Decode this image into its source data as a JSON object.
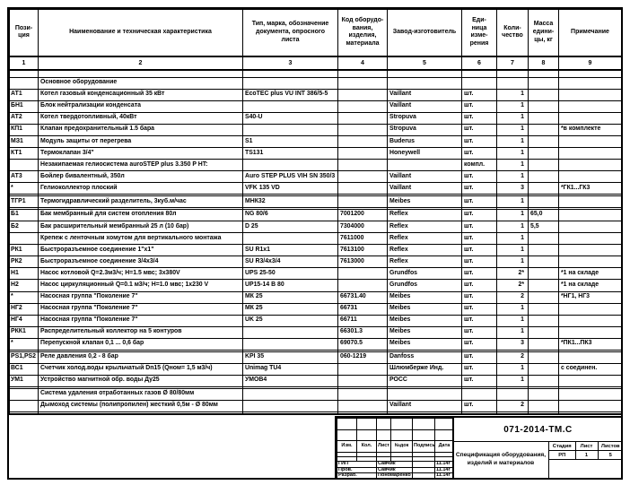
{
  "table": {
    "headers": [
      "Пози-\nция",
      "Наименование и техническая характеристика",
      "Тип, марка, обозначение\nдокумента, опросного\nлиста",
      "Код оборудо-\nвания,\nизделия,\nматериала",
      "Завод-изготовитель",
      "Еди-\nница\nизме-\nрения",
      "Коли-\nчество",
      "Масса\nедини-\nцы, кг",
      "Примечание"
    ],
    "col_numbers": [
      "1",
      "2",
      "3",
      "4",
      "5",
      "6",
      "7",
      "8",
      "9"
    ],
    "rows": [
      {
        "section": true,
        "c": [
          "",
          "Основное оборудование",
          "",
          "",
          "",
          "",
          "",
          "",
          ""
        ]
      },
      {
        "c": [
          "АТ1",
          "Котел газовый конденсационный 35 кВт",
          "EcoTEC plus VU INT 386/5-5",
          "",
          "Vaillant",
          "шт.",
          "1",
          "",
          ""
        ]
      },
      {
        "c": [
          "БН1",
          "Блок нейтрализации конденсата",
          "",
          "",
          "Vaillant",
          "шт.",
          "1",
          "",
          ""
        ]
      },
      {
        "c": [
          "АТ2",
          "Котел твердотопливный, 40кВт",
          "S40-U",
          "",
          "Stropuva",
          "шт.",
          "1",
          "",
          ""
        ]
      },
      {
        "c": [
          "КП1",
          "Клапан предохранительный 1.5 бара",
          "",
          "",
          "Stropuva",
          "шт.",
          "1",
          "",
          "*в комплекте"
        ]
      },
      {
        "c": [
          "МЗ1",
          "Модуль защиты от перегрева",
          "S1",
          "",
          "Buderus",
          "шт.",
          "1",
          "",
          ""
        ]
      },
      {
        "c": [
          "КТ1",
          "Термоклапан 3/4\"",
          "TS131",
          "",
          "Honeywell",
          "шт.",
          "1",
          "",
          ""
        ]
      },
      {
        "section": true,
        "c": [
          "",
          "Незакипаемая гелиосистема auroSTEP plus 3.350 P HT:",
          "",
          "",
          "",
          "компл.",
          "1",
          "",
          ""
        ]
      },
      {
        "c": [
          "АТ3",
          "Бойлер бивалентный, 350л",
          "Auro STEP PLUS VIH SN 350/3",
          "",
          "Vaillant",
          "шт.",
          "1",
          "",
          ""
        ]
      },
      {
        "c": [
          "*",
          "Гелиоколлектор плоский",
          "VFK 135 VD",
          "",
          "Vaillant",
          "шт.",
          "3",
          "",
          "*ГК1...ГК3"
        ]
      },
      {
        "empty": true
      },
      {
        "c": [
          "ТГР1",
          "Термогидравлический разделитель, 3куб.м/час",
          "МНК32",
          "",
          "Meibes",
          "шт.",
          "1",
          "",
          ""
        ]
      },
      {
        "empty": true
      },
      {
        "c": [
          "Б1",
          "Бак мембранный для систем отопления 80л",
          "NG 80/6",
          "7001200",
          "Reflex",
          "шт.",
          "1",
          "65,0",
          ""
        ]
      },
      {
        "c": [
          "Б2",
          "Бак расширительный мембранный 25 л (10 бар)",
          "D 25",
          "7304000",
          "Reflex",
          "шт.",
          "1",
          "5,5",
          ""
        ]
      },
      {
        "c": [
          "",
          "Крепеж с ленточным хомутом для вертикального монтажа",
          "",
          "7611000",
          "Reflex",
          "шт.",
          "1",
          "",
          ""
        ]
      },
      {
        "c": [
          "РК1",
          "Быстроразъемное соединение 1\"х1\"",
          "SU R1x1",
          "7613100",
          "Reflex",
          "шт.",
          "1",
          "",
          ""
        ]
      },
      {
        "c": [
          "РК2",
          "Быстроразъемное соединение 3/4х3/4",
          "SU R3/4х3/4",
          "7613000",
          "Reflex",
          "шт.",
          "1",
          "",
          ""
        ]
      },
      {
        "c": [
          "Н1",
          "Насос котловой  Q=2.3м3/ч; Н=1.5 мвс; 3х380V",
          "UPS 25-50",
          "",
          "Grundfos",
          "шт.",
          "2*",
          "",
          "*1 на складе"
        ]
      },
      {
        "c": [
          "Н2",
          "Насос циркуляционный Q=0.1 м3/ч; Н=1.0 мвс; 1х230 V",
          "UP15-14 B 80",
          "",
          "Grundfos",
          "шт.",
          "2*",
          "",
          "*1 на складе"
        ]
      },
      {
        "c": [
          "*",
          "Насосная группа  \"Поколение 7\"",
          "МК 25",
          "66731.40",
          "Meibes",
          "шт.",
          "2",
          "",
          "*НГ1, НГ3"
        ]
      },
      {
        "c": [
          "НГ2",
          "Насосная группа  \"Поколение 7\"",
          "МК 25",
          "66731",
          "Meibes",
          "шт.",
          "1",
          "",
          ""
        ]
      },
      {
        "c": [
          "НГ4",
          "Насосная группа  \"Поколение 7\"",
          "UK 25",
          "66711",
          "Meibes",
          "шт.",
          "1",
          "",
          ""
        ]
      },
      {
        "c": [
          "РКК1",
          "Распределительный коллектор на 5 контуров",
          "",
          "66301.3",
          "Meibes",
          "шт.",
          "1",
          "",
          ""
        ]
      },
      {
        "c": [
          "*",
          "Перепускной клапан 0,1 ... 0,6 бар",
          "",
          "69070.5",
          "Meibes",
          "шт.",
          "3",
          "",
          "*ПК1...ПК3"
        ]
      },
      {
        "empty": true
      },
      {
        "c": [
          "PS1,PS2",
          "Реле давления 0,2 - 8 бар",
          "KPI 35",
          "060-1219",
          "Danfoss",
          "шт.",
          "2",
          "",
          ""
        ]
      },
      {
        "c": [
          "ВС1",
          "Счетчик холод.воды крыльчатый Dn15 (Qном= 1,5 м3/ч)",
          "Unimag TU4",
          "",
          "Шлюмберже Инд.",
          "шт.",
          "1",
          "",
          "с соединен."
        ]
      },
      {
        "c": [
          "УМ1",
          "Устройство магнитной обр. воды Ду25",
          "УМОВ4",
          "",
          "РОСС",
          "шт.",
          "1",
          "",
          ""
        ]
      },
      {
        "empty": true
      },
      {
        "section": true,
        "c": [
          "",
          "Система удаления отработанных газов Ø 80/80мм",
          "",
          "",
          "",
          "",
          "",
          "",
          ""
        ]
      },
      {
        "c": [
          "",
          "Дымоход системы (полипропилен) жесткий 0,5м - Ø 80мм",
          "",
          "",
          "Vaillant",
          "шт.",
          "2",
          "",
          ""
        ]
      },
      {
        "empty": true
      }
    ]
  },
  "title_block": {
    "doc_number": "071-2014-ТМ.С",
    "doc_title": "Спецификация оборудования,\nизделий и материалов",
    "left_header": [
      "Изм.",
      "Кол.",
      "Лист",
      "№док",
      "Подпись",
      "Дата"
    ],
    "signatures": [
      {
        "role": "ГИП",
        "name": "Савчик",
        "date": "11.14г"
      },
      {
        "role": "Пров.",
        "name": "Савчик",
        "date": "11.14г"
      },
      {
        "role": "Разраб.",
        "name": "Пономаренко",
        "date": "11.14г"
      }
    ],
    "stage": {
      "headers": [
        "Стадия",
        "Лист",
        "Листов"
      ],
      "values": [
        "РП",
        "1",
        "5"
      ]
    }
  }
}
